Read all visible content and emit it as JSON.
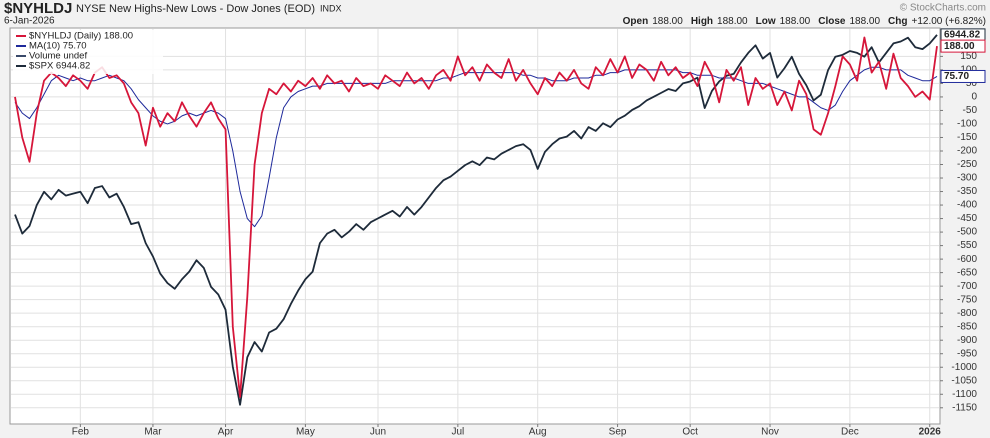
{
  "chart_data": {
    "type": "line",
    "title": "$NYHLDJ",
    "subtitle": "NYSE New Highs-New Lows - Dow Jones (EOD)",
    "exchange": "INDX",
    "date": "6-Jan-2026",
    "credit": "© StockCharts.com",
    "quote": [
      {
        "label": "Open",
        "value": "188.00"
      },
      {
        "label": "High",
        "value": "188.00"
      },
      {
        "label": "Low",
        "value": "188.00"
      },
      {
        "label": "Close",
        "value": "188.00"
      },
      {
        "label": "Chg",
        "value": "+12.00 (+6.82%)"
      }
    ],
    "legend": "upper left",
    "legend_extra": "Volume undef",
    "grid": true,
    "ylim": [
      -1210,
      255
    ],
    "yticks": [
      150,
      100,
      50,
      0,
      -50,
      -100,
      -150,
      -200,
      -250,
      -300,
      -350,
      -400,
      -450,
      -500,
      -550,
      -600,
      -650,
      -700,
      -750,
      -800,
      -850,
      -900,
      -950,
      -1000,
      -1050,
      -1100,
      -1150
    ],
    "y2lim": [
      4899,
      6981
    ],
    "categories": [
      null,
      null,
      null,
      null,
      null,
      null,
      null,
      null,
      null,
      "Feb",
      null,
      null,
      null,
      null,
      null,
      null,
      null,
      null,
      null,
      "Mar",
      null,
      null,
      null,
      null,
      null,
      null,
      null,
      null,
      null,
      "Apr",
      null,
      null,
      null,
      null,
      null,
      null,
      null,
      null,
      null,
      null,
      "May",
      null,
      null,
      null,
      null,
      null,
      null,
      null,
      null,
      null,
      "Jun",
      null,
      null,
      null,
      null,
      null,
      null,
      null,
      null,
      null,
      null,
      "Jul",
      null,
      null,
      null,
      null,
      null,
      null,
      null,
      null,
      null,
      null,
      "Aug",
      null,
      null,
      null,
      null,
      null,
      null,
      null,
      null,
      null,
      null,
      "Sep",
      null,
      null,
      null,
      null,
      null,
      null,
      null,
      null,
      null,
      "Oct",
      null,
      null,
      null,
      null,
      null,
      null,
      null,
      null,
      null,
      null,
      "Nov",
      null,
      null,
      null,
      null,
      null,
      null,
      null,
      null,
      null,
      null,
      "Dec",
      null,
      null,
      null,
      null,
      null,
      null,
      null,
      null,
      null,
      null,
      "2026",
      null
    ],
    "series": [
      {
        "name": "$SPX 6944.82",
        "color": "#1e2b3a",
        "axis": "y2",
        "last_label": "6944.82",
        "values": [
          6000,
          5900,
          5940,
          6050,
          6120,
          6080,
          6130,
          6100,
          6110,
          6120,
          6060,
          6140,
          6150,
          6090,
          6110,
          6040,
          5950,
          5960,
          5850,
          5780,
          5690,
          5640,
          5610,
          5660,
          5700,
          5760,
          5720,
          5620,
          5580,
          5500,
          5200,
          5000,
          5250,
          5330,
          5280,
          5380,
          5400,
          5450,
          5530,
          5600,
          5660,
          5700,
          5850,
          5900,
          5920,
          5880,
          5910,
          5950,
          5920,
          5960,
          5980,
          6000,
          6020,
          5990,
          6040,
          6000,
          6040,
          6090,
          6140,
          6180,
          6200,
          6230,
          6260,
          6280,
          6260,
          6300,
          6290,
          6320,
          6340,
          6360,
          6370,
          6340,
          6240,
          6330,
          6370,
          6400,
          6410,
          6440,
          6400,
          6460,
          6440,
          6480,
          6460,
          6500,
          6520,
          6550,
          6570,
          6600,
          6620,
          6640,
          6660,
          6650,
          6690,
          6700,
          6720,
          6560,
          6650,
          6700,
          6730,
          6740,
          6800,
          6850,
          6890,
          6820,
          6850,
          6720,
          6770,
          6830,
          6740,
          6680,
          6600,
          6630,
          6760,
          6830,
          6840,
          6860,
          6850,
          6830,
          6880,
          6800,
          6850,
          6900,
          6910,
          6930,
          6880,
          6870,
          6900,
          6944.82
        ]
      },
      {
        "name": "MA(10) 75.70",
        "color": "#1f2a9b",
        "last_label": "75.70",
        "values": [
          -20,
          -60,
          -80,
          -40,
          10,
          60,
          80,
          70,
          60,
          70,
          60,
          60,
          70,
          80,
          70,
          60,
          30,
          -10,
          -40,
          -70,
          -90,
          -100,
          -90,
          -70,
          -60,
          -70,
          -60,
          -50,
          -60,
          -80,
          -200,
          -350,
          -450,
          -480,
          -440,
          -300,
          -150,
          -40,
          0,
          20,
          30,
          40,
          40,
          50,
          50,
          50,
          50,
          50,
          50,
          50,
          50,
          50,
          60,
          60,
          60,
          60,
          60,
          60,
          60,
          70,
          70,
          80,
          90,
          90,
          90,
          90,
          90,
          90,
          90,
          90,
          80,
          80,
          70,
          70,
          60,
          60,
          60,
          70,
          70,
          70,
          80,
          80,
          90,
          90,
          100,
          100,
          100,
          100,
          100,
          100,
          100,
          100,
          90,
          90,
          80,
          80,
          80,
          70,
          70,
          70,
          60,
          50,
          50,
          50,
          40,
          30,
          20,
          10,
          0,
          0,
          -20,
          -40,
          -50,
          -30,
          20,
          60,
          80,
          100,
          110,
          110,
          100,
          100,
          100,
          80,
          70,
          60,
          60,
          75.7
        ]
      },
      {
        "name": "$NYHLDJ (Daily) 188.00",
        "color": "#d6163a",
        "last_label": "188.00",
        "values": [
          0,
          -150,
          -240,
          -60,
          60,
          90,
          70,
          40,
          80,
          60,
          30,
          90,
          110,
          70,
          80,
          50,
          -20,
          -60,
          -180,
          -40,
          -110,
          -60,
          -90,
          -20,
          -70,
          -110,
          -60,
          -20,
          -80,
          -120,
          -850,
          -1110,
          -740,
          -250,
          -60,
          30,
          10,
          50,
          20,
          60,
          40,
          70,
          30,
          80,
          50,
          60,
          20,
          70,
          40,
          50,
          30,
          80,
          60,
          40,
          90,
          50,
          70,
          30,
          80,
          100,
          60,
          150,
          80,
          110,
          60,
          120,
          90,
          70,
          140,
          60,
          100,
          50,
          10,
          70,
          40,
          90,
          60,
          100,
          50,
          30,
          110,
          80,
          140,
          90,
          150,
          70,
          120,
          100,
          60,
          130,
          80,
          110,
          70,
          90,
          40,
          130,
          80,
          -20,
          100,
          60,
          110,
          -30,
          70,
          30,
          50,
          -30,
          20,
          -50,
          60,
          10,
          -120,
          -140,
          -60,
          40,
          150,
          120,
          60,
          220,
          90,
          130,
          30,
          160,
          70,
          40,
          0,
          20,
          -10,
          188
        ]
      }
    ]
  }
}
